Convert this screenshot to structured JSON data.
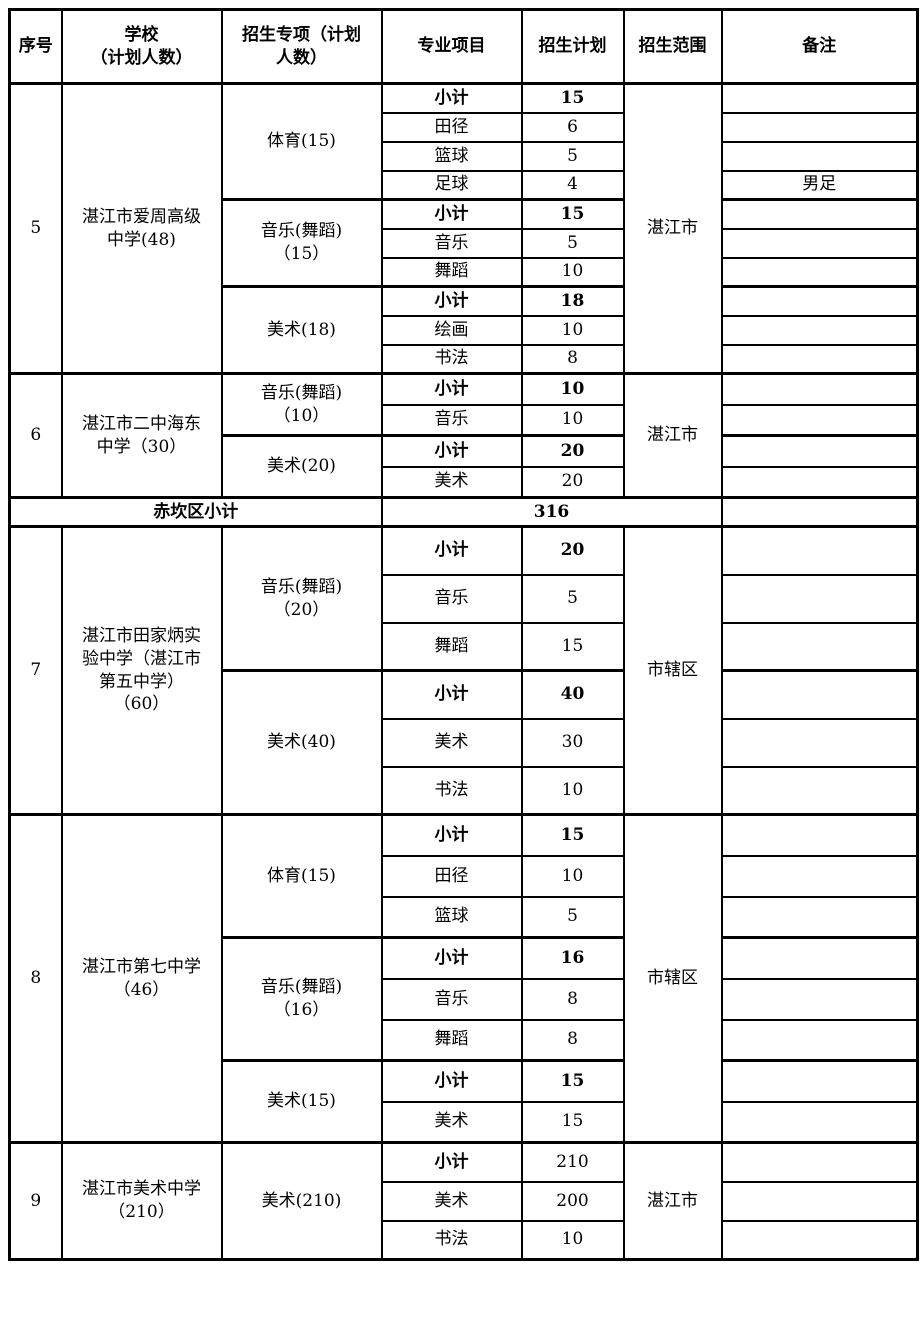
{
  "colors": {
    "text": "#000000",
    "border": "#000000",
    "background": "#ffffff"
  },
  "header": {
    "columns": [
      "序号",
      "学校\n（计划人数）",
      "招生专项（计划\n人数）",
      "专业项目",
      "招生计划",
      "招生范围",
      "备注"
    ]
  },
  "blocks": [
    {
      "type": "section",
      "no": "5",
      "school": "湛江市爱周高级\n中学(48)",
      "region": "湛江市",
      "groups": [
        {
          "label": "体育(15)",
          "rows": [
            {
              "item": "小计",
              "value": "15",
              "bold": true
            },
            {
              "item": "田径",
              "value": "6"
            },
            {
              "item": "篮球",
              "value": "5"
            },
            {
              "item": "足球",
              "value": "4",
              "remark": "男足"
            }
          ]
        },
        {
          "label": "音乐(舞蹈)\n（15）",
          "rows": [
            {
              "item": "小计",
              "value": "15",
              "bold": true
            },
            {
              "item": "音乐",
              "value": "5"
            },
            {
              "item": "舞蹈",
              "value": "10"
            }
          ]
        },
        {
          "label": "美术(18)",
          "rows": [
            {
              "item": "小计",
              "value": "18",
              "bold": true
            },
            {
              "item": "绘画",
              "value": "10"
            },
            {
              "item": "书法",
              "value": "8"
            }
          ]
        }
      ]
    },
    {
      "type": "section",
      "no": "6",
      "school": "湛江市二中海东\n中学（30）",
      "region": "湛江市",
      "groups": [
        {
          "label": "音乐(舞蹈)\n（10）",
          "rows": [
            {
              "item": "小计",
              "value": "10",
              "bold": true
            },
            {
              "item": "音乐",
              "value": "10"
            }
          ]
        },
        {
          "label": "美术(20)",
          "rows": [
            {
              "item": "小计",
              "value": "20",
              "bold": true
            },
            {
              "item": "美术",
              "value": "20"
            }
          ]
        }
      ]
    },
    {
      "type": "summary",
      "label": "赤坎区小计",
      "value": "316"
    },
    {
      "type": "section",
      "no": "7",
      "school": "湛江市田家炳实\n验中学（湛江市\n第五中学）\n（60）",
      "region": "市辖区",
      "groups": [
        {
          "label": "音乐(舞蹈)\n（20）",
          "rows": [
            {
              "item": "小计",
              "value": "20",
              "bold": true
            },
            {
              "item": "音乐",
              "value": "5"
            },
            {
              "item": "舞蹈",
              "value": "15"
            }
          ]
        },
        {
          "label": "美术(40)",
          "rows": [
            {
              "item": "小计",
              "value": "40",
              "bold": true
            },
            {
              "item": "美术",
              "value": "30"
            },
            {
              "item": "书法",
              "value": "10"
            }
          ]
        }
      ]
    },
    {
      "type": "section",
      "no": "8",
      "school": "湛江市第七中学\n（46）",
      "region": "市辖区",
      "groups": [
        {
          "label": "体育(15)",
          "rows": [
            {
              "item": "小计",
              "value": "15",
              "bold": true
            },
            {
              "item": "田径",
              "value": "10"
            },
            {
              "item": "篮球",
              "value": "5"
            }
          ]
        },
        {
          "label": "音乐(舞蹈)\n（16）",
          "rows": [
            {
              "item": "小计",
              "value": "16",
              "bold": true
            },
            {
              "item": "音乐",
              "value": "8"
            },
            {
              "item": "舞蹈",
              "value": "8"
            }
          ]
        },
        {
          "label": "美术(15)",
          "rows": [
            {
              "item": "小计",
              "value": "15",
              "bold": true
            },
            {
              "item": "美术",
              "value": "15"
            }
          ]
        }
      ]
    },
    {
      "type": "section",
      "no": "9",
      "school": "湛江市美术中学\n（210）",
      "region": "湛江市",
      "groups": [
        {
          "label": "美术(210)",
          "rows": [
            {
              "item": "小计",
              "value": "210",
              "bold": true,
              "value_bold": false
            },
            {
              "item": "美术",
              "value": "200"
            },
            {
              "item": "书法",
              "value": "10"
            }
          ]
        }
      ]
    }
  ]
}
